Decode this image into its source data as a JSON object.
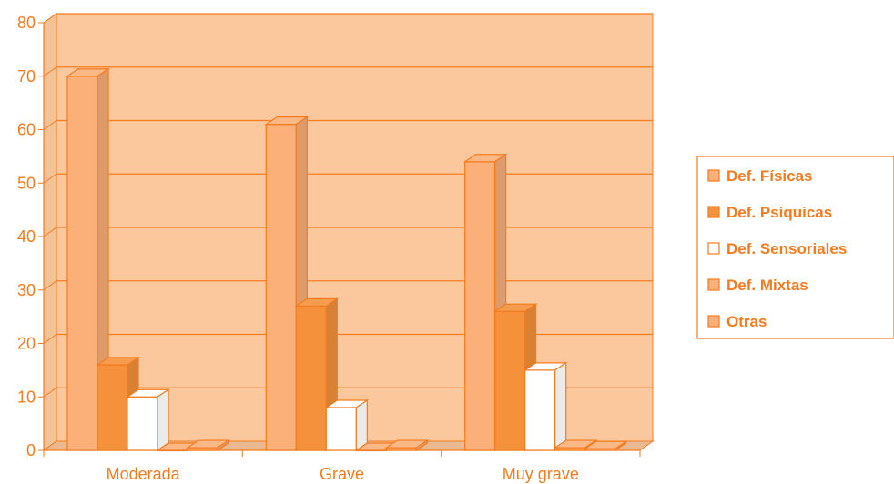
{
  "chart_data": {
    "type": "bar",
    "categories": [
      "Moderada",
      "Grave",
      "Muy grave"
    ],
    "series": [
      {
        "name": "Def. Físicas",
        "values": [
          70,
          61,
          54
        ],
        "color": "#fbb07a"
      },
      {
        "name": "Def. Psíquicas",
        "values": [
          16,
          27,
          26
        ],
        "color": "#f5913b"
      },
      {
        "name": "Def. Sensoriales",
        "values": [
          10,
          8,
          15
        ],
        "color": "#ffffff"
      },
      {
        "name": "Def. Mixtas",
        "values": [
          0,
          0,
          0.5
        ],
        "color": "#fbb07a"
      },
      {
        "name": "Otras",
        "values": [
          0.5,
          0.5,
          0.3
        ],
        "color": "#fbb07a"
      }
    ],
    "y_ticks": [
      "0",
      "10",
      "20",
      "30",
      "40",
      "50",
      "60",
      "70",
      "80"
    ],
    "ylim": [
      0,
      80
    ],
    "grid": true,
    "legend_position": "right",
    "colors": {
      "plot_background": "#fac89c",
      "axis": "#f47c20",
      "text": "#f47c20"
    }
  }
}
